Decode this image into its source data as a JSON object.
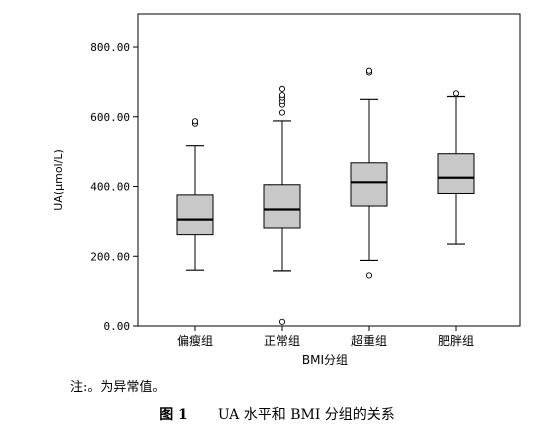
{
  "chart_data": {
    "type": "box",
    "xlabel": "BMI分组",
    "ylabel": "UA(μmol/L)",
    "ylim": [
      0,
      800
    ],
    "yticks": [
      0,
      200,
      400,
      600,
      800
    ],
    "ytick_labels": [
      "0.00",
      "200.00",
      "400.00",
      "600.00",
      "800.00"
    ],
    "grid": false,
    "categories": [
      "偏瘦组",
      "正常组",
      "超重组",
      "肥胖组"
    ],
    "boxes": [
      {
        "whisker_low": 160,
        "q1": 262,
        "median": 305,
        "q3": 376,
        "whisker_high": 517,
        "outliers": [
          580,
          587
        ]
      },
      {
        "whisker_low": 158,
        "q1": 281,
        "median": 334,
        "q3": 405,
        "whisker_high": 588,
        "outliers": [
          12,
          612,
          635,
          645,
          655,
          662,
          680
        ]
      },
      {
        "whisker_low": 188,
        "q1": 344,
        "median": 412,
        "q3": 468,
        "whisker_high": 650,
        "outliers": [
          145,
          727,
          732
        ]
      },
      {
        "whisker_low": 235,
        "q1": 380,
        "median": 425,
        "q3": 494,
        "whisker_high": 658,
        "outliers": [
          667
        ]
      }
    ],
    "colors": {
      "box_fill": "#c8c8c8",
      "stroke": "#000000",
      "background": "#ffffff"
    }
  },
  "note": "注:。为异常值。",
  "caption": {
    "figure": "图 1",
    "text": "UA 水平和 BMI 分组的关系"
  }
}
